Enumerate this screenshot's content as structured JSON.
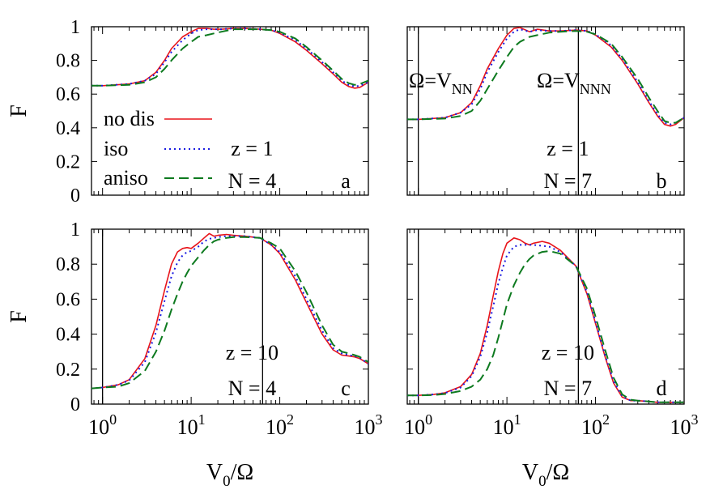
{
  "colors": {
    "no_dis": "#e8141a",
    "iso": "#1a1ae0",
    "aniso": "#0d7a1f",
    "axis": "#000000"
  },
  "legend": {
    "entries": [
      {
        "label": "no dis",
        "series": "no_dis"
      },
      {
        "label": "iso",
        "series": "iso"
      },
      {
        "label": "aniso",
        "series": "aniso"
      }
    ]
  },
  "chart_data": [
    {
      "type": "line",
      "panel": "a",
      "xscale": "log",
      "xlim": [
        0.75,
        1000
      ],
      "ylim": [
        0,
        1
      ],
      "ylabel": "F",
      "xlabel": "",
      "yticks": [
        "0",
        "0.2",
        "0.4",
        "0.6",
        "0.8",
        "1"
      ],
      "xticks": [],
      "annotations": {
        "z": "z = 1",
        "N": "N = 4",
        "letter": "a"
      },
      "vlines": [],
      "series": [
        {
          "name": "no dis",
          "key": "no_dis",
          "x": [
            0.75,
            1,
            2,
            3,
            4,
            5,
            6,
            8,
            10,
            12,
            15,
            18,
            22,
            30,
            40,
            60,
            80,
            100,
            150,
            200,
            300,
            400,
            500,
            600,
            700,
            800,
            1000
          ],
          "y": [
            0.65,
            0.65,
            0.66,
            0.68,
            0.73,
            0.8,
            0.87,
            0.94,
            0.97,
            0.99,
            0.99,
            0.985,
            0.985,
            0.99,
            0.99,
            0.985,
            0.98,
            0.96,
            0.91,
            0.86,
            0.78,
            0.72,
            0.67,
            0.645,
            0.635,
            0.64,
            0.67
          ]
        },
        {
          "name": "iso",
          "key": "iso",
          "x": [
            0.75,
            1,
            2,
            3,
            4,
            5,
            6,
            8,
            10,
            12,
            15,
            18,
            22,
            30,
            40,
            60,
            80,
            100,
            150,
            200,
            300,
            400,
            500,
            600,
            700,
            800,
            1000
          ],
          "y": [
            0.65,
            0.65,
            0.66,
            0.68,
            0.72,
            0.79,
            0.85,
            0.92,
            0.96,
            0.98,
            0.985,
            0.985,
            0.985,
            0.99,
            0.99,
            0.985,
            0.98,
            0.965,
            0.92,
            0.87,
            0.79,
            0.73,
            0.68,
            0.655,
            0.645,
            0.65,
            0.67
          ]
        },
        {
          "name": "aniso",
          "key": "aniso",
          "x": [
            0.75,
            1,
            2,
            3,
            4,
            5,
            6,
            8,
            10,
            12,
            15,
            18,
            22,
            30,
            40,
            60,
            80,
            100,
            150,
            200,
            300,
            400,
            500,
            600,
            700,
            800,
            1000
          ],
          "y": [
            0.65,
            0.65,
            0.655,
            0.67,
            0.7,
            0.75,
            0.8,
            0.87,
            0.91,
            0.94,
            0.95,
            0.96,
            0.97,
            0.985,
            0.985,
            0.985,
            0.98,
            0.97,
            0.93,
            0.88,
            0.8,
            0.74,
            0.69,
            0.665,
            0.655,
            0.66,
            0.68
          ]
        }
      ]
    },
    {
      "type": "line",
      "panel": "b",
      "xscale": "log",
      "xlim": [
        0.75,
        1000
      ],
      "ylim": [
        0,
        1
      ],
      "ylabel": "",
      "xlabel": "",
      "yticks": [],
      "xticks": [],
      "annotations": {
        "z": "z = 1",
        "N": "N = 7",
        "letter": "b",
        "vline1": "Ω=V_NN",
        "vline2": "Ω=V_NNN"
      },
      "vlines": [
        1,
        64
      ],
      "series": [
        {
          "name": "no dis",
          "key": "no_dis",
          "x": [
            0.75,
            1,
            2,
            3,
            4,
            5,
            6,
            8,
            10,
            12,
            14,
            18,
            22,
            30,
            40,
            60,
            80,
            100,
            150,
            200,
            300,
            400,
            500,
            600,
            700,
            800,
            1000
          ],
          "y": [
            0.45,
            0.45,
            0.46,
            0.49,
            0.55,
            0.65,
            0.75,
            0.87,
            0.95,
            0.99,
            0.995,
            0.97,
            0.985,
            0.975,
            0.975,
            0.98,
            0.975,
            0.95,
            0.88,
            0.8,
            0.66,
            0.55,
            0.47,
            0.42,
            0.41,
            0.42,
            0.46
          ]
        },
        {
          "name": "iso",
          "key": "iso",
          "x": [
            0.75,
            1,
            2,
            3,
            4,
            5,
            6,
            8,
            10,
            12,
            14,
            18,
            22,
            30,
            40,
            60,
            80,
            100,
            150,
            200,
            300,
            400,
            500,
            600,
            700,
            800,
            1000
          ],
          "y": [
            0.45,
            0.45,
            0.46,
            0.49,
            0.54,
            0.63,
            0.73,
            0.85,
            0.93,
            0.97,
            0.985,
            0.97,
            0.98,
            0.975,
            0.975,
            0.98,
            0.975,
            0.955,
            0.89,
            0.81,
            0.67,
            0.56,
            0.48,
            0.43,
            0.42,
            0.43,
            0.46
          ]
        },
        {
          "name": "aniso",
          "key": "aniso",
          "x": [
            0.75,
            1,
            2,
            3,
            4,
            5,
            6,
            8,
            10,
            12,
            14,
            18,
            22,
            30,
            40,
            60,
            80,
            100,
            150,
            200,
            300,
            400,
            500,
            600,
            700,
            800,
            1000
          ],
          "y": [
            0.45,
            0.45,
            0.455,
            0.47,
            0.5,
            0.56,
            0.63,
            0.74,
            0.82,
            0.88,
            0.91,
            0.94,
            0.95,
            0.965,
            0.97,
            0.975,
            0.97,
            0.955,
            0.9,
            0.82,
            0.69,
            0.58,
            0.5,
            0.44,
            0.43,
            0.43,
            0.46
          ]
        }
      ]
    },
    {
      "type": "line",
      "panel": "c",
      "xscale": "log",
      "xlim": [
        0.75,
        1000
      ],
      "ylim": [
        0,
        1
      ],
      "ylabel": "F",
      "xlabel": "V₀/Ω",
      "yticks": [
        "0",
        "0.2",
        "0.4",
        "0.6",
        "0.8",
        "1"
      ],
      "xticks": [
        {
          "v": 1,
          "base": "10",
          "exp": "0"
        },
        {
          "v": 10,
          "base": "10",
          "exp": "1"
        },
        {
          "v": 100,
          "base": "10",
          "exp": "2"
        },
        {
          "v": 1000,
          "base": "10",
          "exp": "3"
        }
      ],
      "annotations": {
        "z": "z = 10",
        "N": "N = 4",
        "letter": "c"
      },
      "vlines": [
        1,
        64
      ],
      "series": [
        {
          "name": "no dis",
          "key": "no_dis",
          "x": [
            0.75,
            1,
            1.5,
            2,
            3,
            4,
            5,
            6,
            7,
            8,
            9,
            10,
            12,
            14,
            16,
            18,
            20,
            25,
            30,
            40,
            60,
            80,
            100,
            150,
            200,
            300,
            400,
            500,
            600,
            700,
            800,
            1000
          ],
          "y": [
            0.09,
            0.095,
            0.11,
            0.14,
            0.26,
            0.45,
            0.65,
            0.8,
            0.87,
            0.89,
            0.895,
            0.89,
            0.92,
            0.95,
            0.975,
            0.96,
            0.965,
            0.97,
            0.965,
            0.96,
            0.95,
            0.91,
            0.86,
            0.71,
            0.58,
            0.4,
            0.31,
            0.28,
            0.275,
            0.27,
            0.26,
            0.23
          ]
        },
        {
          "name": "iso",
          "key": "iso",
          "x": [
            0.75,
            1,
            1.5,
            2,
            3,
            4,
            5,
            6,
            7,
            8,
            9,
            10,
            12,
            14,
            16,
            18,
            20,
            25,
            30,
            40,
            60,
            80,
            100,
            150,
            200,
            300,
            400,
            500,
            600,
            700,
            800,
            1000
          ],
          "y": [
            0.09,
            0.095,
            0.11,
            0.135,
            0.24,
            0.41,
            0.59,
            0.73,
            0.81,
            0.85,
            0.87,
            0.875,
            0.9,
            0.93,
            0.945,
            0.95,
            0.955,
            0.96,
            0.96,
            0.96,
            0.95,
            0.91,
            0.87,
            0.73,
            0.6,
            0.42,
            0.32,
            0.29,
            0.28,
            0.275,
            0.265,
            0.23
          ]
        },
        {
          "name": "aniso",
          "key": "aniso",
          "x": [
            0.75,
            1,
            1.5,
            2,
            3,
            4,
            5,
            6,
            7,
            8,
            9,
            10,
            12,
            14,
            16,
            18,
            20,
            25,
            30,
            40,
            60,
            80,
            100,
            150,
            200,
            300,
            400,
            500,
            600,
            700,
            800,
            1000
          ],
          "y": [
            0.09,
            0.095,
            0.1,
            0.12,
            0.19,
            0.3,
            0.42,
            0.54,
            0.63,
            0.7,
            0.75,
            0.79,
            0.84,
            0.88,
            0.91,
            0.93,
            0.94,
            0.95,
            0.955,
            0.955,
            0.95,
            0.92,
            0.89,
            0.76,
            0.64,
            0.45,
            0.34,
            0.3,
            0.29,
            0.28,
            0.27,
            0.24
          ]
        }
      ]
    },
    {
      "type": "line",
      "panel": "d",
      "xscale": "log",
      "xlim": [
        0.75,
        1000
      ],
      "ylim": [
        0,
        1
      ],
      "ylabel": "",
      "xlabel": "V₀/Ω",
      "yticks": [],
      "xticks": [
        {
          "v": 1,
          "base": "10",
          "exp": "0"
        },
        {
          "v": 10,
          "base": "10",
          "exp": "1"
        },
        {
          "v": 100,
          "base": "10",
          "exp": "2"
        },
        {
          "v": 1000,
          "base": "10",
          "exp": "3"
        }
      ],
      "annotations": {
        "z": "z = 10",
        "N": "N = 7",
        "letter": "d"
      },
      "vlines": [
        1,
        64
      ],
      "series": [
        {
          "name": "no dis",
          "key": "no_dis",
          "x": [
            0.75,
            1,
            1.5,
            2,
            3,
            4,
            5,
            6,
            7,
            8,
            9,
            10,
            12,
            14,
            16,
            18,
            20,
            25,
            30,
            40,
            60,
            80,
            100,
            130,
            160,
            200,
            250,
            300,
            400,
            500,
            600,
            800,
            1000
          ],
          "y": [
            0.05,
            0.05,
            0.055,
            0.065,
            0.1,
            0.17,
            0.29,
            0.45,
            0.62,
            0.76,
            0.86,
            0.92,
            0.95,
            0.94,
            0.92,
            0.91,
            0.92,
            0.93,
            0.92,
            0.88,
            0.79,
            0.63,
            0.46,
            0.26,
            0.12,
            0.04,
            0.02,
            0.02,
            0.015,
            0.01,
            0.01,
            0.01,
            0.01
          ]
        },
        {
          "name": "iso",
          "key": "iso",
          "x": [
            0.75,
            1,
            1.5,
            2,
            3,
            4,
            5,
            6,
            7,
            8,
            9,
            10,
            12,
            14,
            16,
            18,
            20,
            25,
            30,
            40,
            60,
            80,
            100,
            130,
            160,
            200,
            250,
            300,
            400,
            500,
            600,
            800,
            1000
          ],
          "y": [
            0.05,
            0.05,
            0.055,
            0.063,
            0.095,
            0.16,
            0.27,
            0.41,
            0.56,
            0.69,
            0.78,
            0.85,
            0.9,
            0.91,
            0.91,
            0.91,
            0.91,
            0.905,
            0.9,
            0.87,
            0.79,
            0.64,
            0.47,
            0.27,
            0.13,
            0.045,
            0.02,
            0.02,
            0.015,
            0.01,
            0.01,
            0.01,
            0.01
          ]
        },
        {
          "name": "aniso",
          "key": "aniso",
          "x": [
            0.75,
            1,
            1.5,
            2,
            3,
            4,
            5,
            6,
            7,
            8,
            9,
            10,
            12,
            14,
            16,
            18,
            20,
            25,
            30,
            40,
            60,
            80,
            100,
            130,
            160,
            200,
            250,
            300,
            400,
            500,
            600,
            800,
            1000
          ],
          "y": [
            0.05,
            0.05,
            0.052,
            0.058,
            0.075,
            0.1,
            0.14,
            0.2,
            0.28,
            0.38,
            0.48,
            0.57,
            0.68,
            0.75,
            0.8,
            0.83,
            0.85,
            0.87,
            0.875,
            0.86,
            0.79,
            0.66,
            0.5,
            0.3,
            0.15,
            0.055,
            0.025,
            0.02,
            0.015,
            0.01,
            0.01,
            0.01,
            0.01
          ]
        }
      ]
    }
  ]
}
